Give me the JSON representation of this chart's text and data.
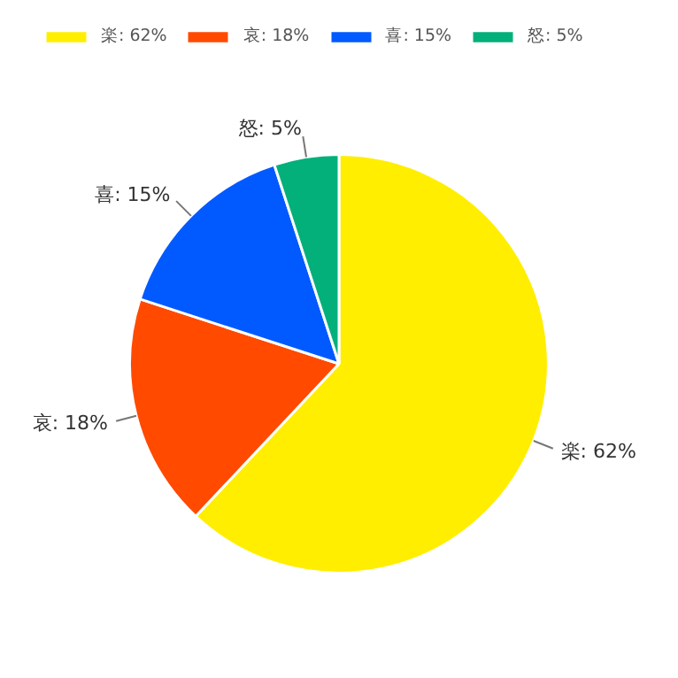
{
  "chart_data": {
    "type": "pie",
    "categories": [
      "楽: 62%",
      "哀: 18%",
      "喜: 15%",
      "怒: 5%"
    ],
    "values": [
      62,
      18,
      15,
      5
    ],
    "colors": [
      "#ffee00",
      "#ff4a00",
      "#005aff",
      "#03b07a"
    ],
    "legend": "top"
  }
}
